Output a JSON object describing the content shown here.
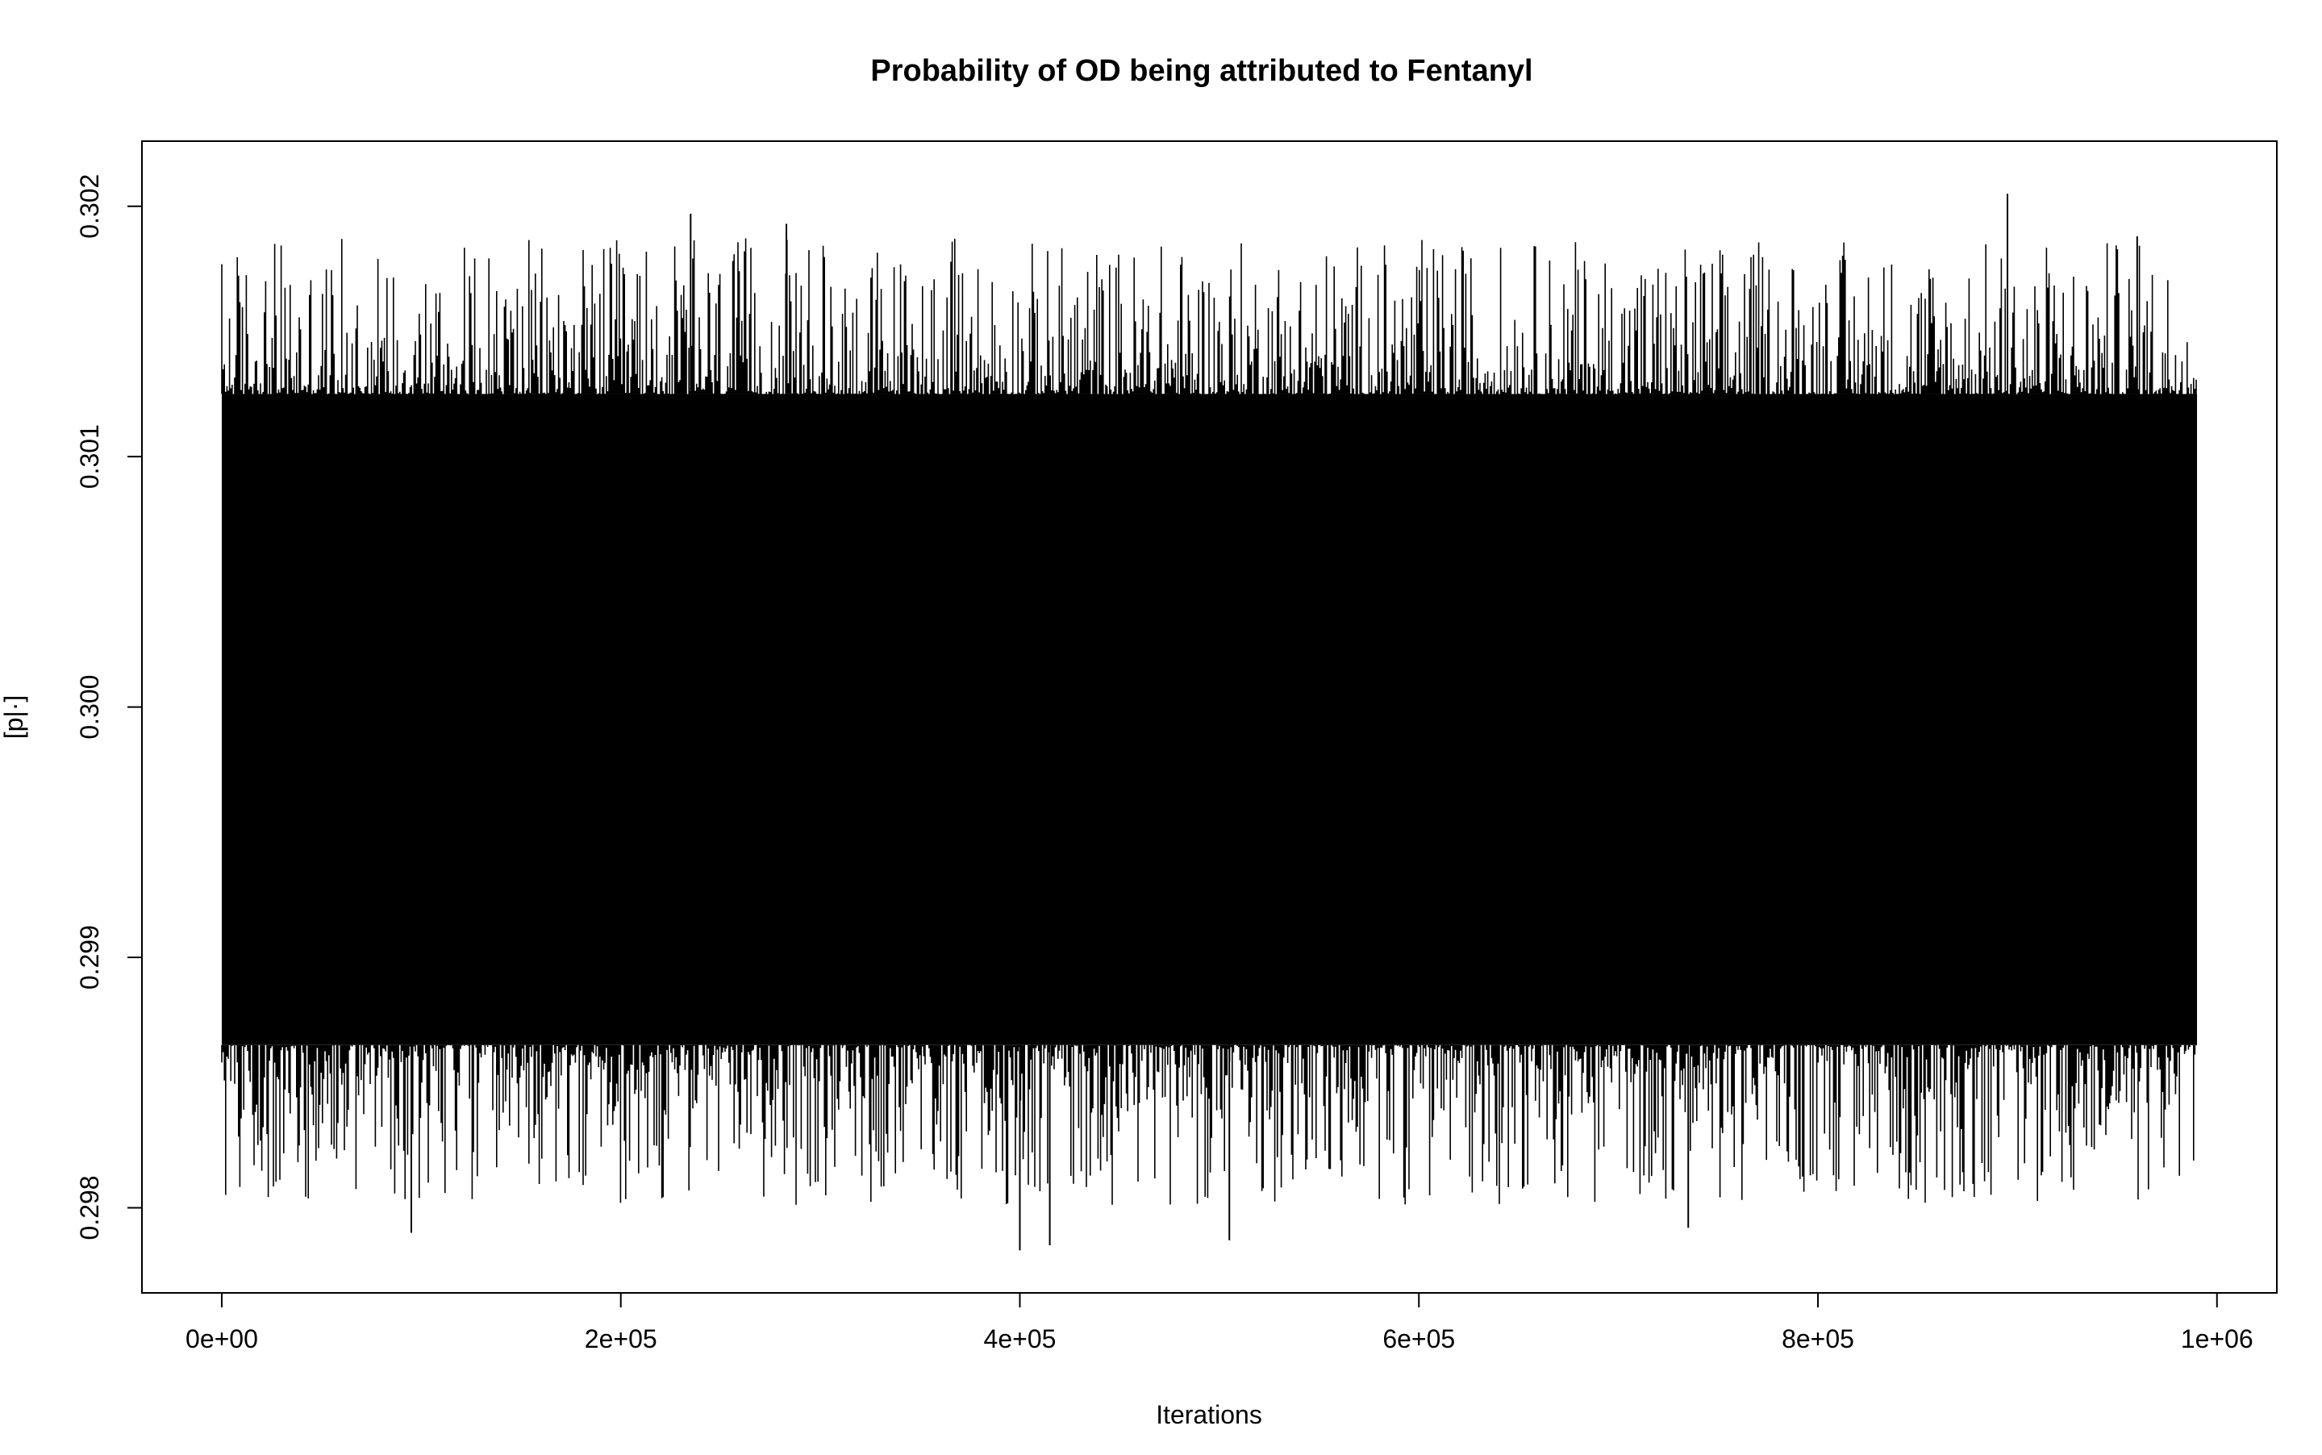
{
  "chart_data": {
    "type": "line",
    "title": "Probability of OD being attributed to Fentanyl",
    "xlabel": "Iterations",
    "ylabel": "[p|·]",
    "xlim": [
      -40000,
      1030000
    ],
    "ylim": [
      0.29766,
      0.30226
    ],
    "x_ticks": [
      {
        "value": 0,
        "label": "0e+00"
      },
      {
        "value": 200000,
        "label": "2e+05"
      },
      {
        "value": 400000,
        "label": "4e+05"
      },
      {
        "value": 600000,
        "label": "6e+05"
      },
      {
        "value": 800000,
        "label": "8e+05"
      },
      {
        "value": 1000000,
        "label": "1e+06"
      }
    ],
    "y_ticks": [
      {
        "value": 0.298,
        "label": "0.298"
      },
      {
        "value": 0.299,
        "label": "0.299"
      },
      {
        "value": 0.3,
        "label": "0.300"
      },
      {
        "value": 0.301,
        "label": "0.301"
      },
      {
        "value": 0.302,
        "label": "0.302"
      }
    ],
    "grid": false,
    "legend": "none",
    "color": "#000000",
    "series": [
      {
        "x_range": [
          0,
          990000
        ],
        "center": 0.29995,
        "dense_band": [
          0.29865,
          0.30125
        ],
        "extremes": [
          0.29783,
          0.30205
        ],
        "peaks": [
          {
            "x": 235000,
            "value": 0.30197
          },
          {
            "x": 283000,
            "value": 0.30193
          },
          {
            "x": 895000,
            "value": 0.30205
          },
          {
            "x": 960000,
            "value": 0.30188
          },
          {
            "x": 95000,
            "value": 0.2979
          },
          {
            "x": 400000,
            "value": 0.29783
          },
          {
            "x": 415000,
            "value": 0.29785
          },
          {
            "x": 505000,
            "value": 0.29787
          },
          {
            "x": 735000,
            "value": 0.29792
          }
        ]
      }
    ]
  }
}
